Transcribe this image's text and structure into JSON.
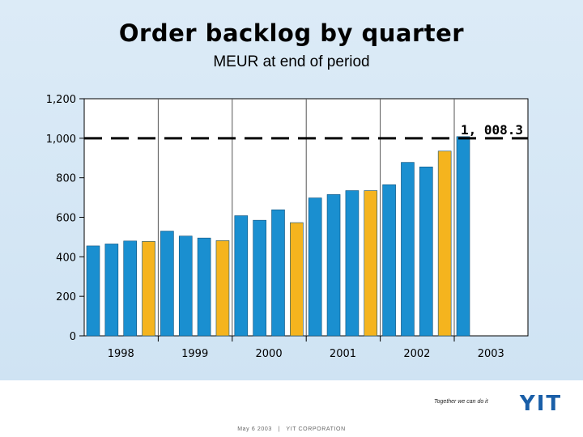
{
  "header": {
    "title": "Order backlog by quarter",
    "subtitle": "MEUR at end of period"
  },
  "chart_data": {
    "type": "bar",
    "title": "Order backlog by quarter",
    "ylabel": "MEUR at end of period",
    "ylim": [
      0,
      1200
    ],
    "yticks": [
      0,
      200,
      400,
      600,
      800,
      1000,
      1200
    ],
    "ytick_labels": [
      "0",
      "200",
      "400",
      "600",
      "800",
      "1,000",
      "1,200"
    ],
    "year_labels": [
      "1998",
      "1999",
      "2000",
      "2001",
      "2002",
      "2003"
    ],
    "values": [
      455,
      465,
      480,
      478,
      530,
      505,
      495,
      482,
      608,
      585,
      638,
      573,
      698,
      715,
      735,
      735,
      765,
      878,
      855,
      935,
      1008.3
    ],
    "highlight_quarters": [
      3,
      7,
      11,
      15,
      19
    ],
    "colors": {
      "regular": "#1a8fd0",
      "q4": "#f5b41e",
      "dashed": "#000000"
    },
    "reference_line": {
      "value": 1008.3,
      "label": "1, 008.3",
      "style": "dashed"
    },
    "grid": {
      "y": false,
      "x_year_dividers": true
    }
  },
  "footer": {
    "tagline": "Together we can do it",
    "date": "May 6 2003",
    "separator": "|",
    "company": "YIT CORPORATION",
    "logo_text": "YIT"
  }
}
